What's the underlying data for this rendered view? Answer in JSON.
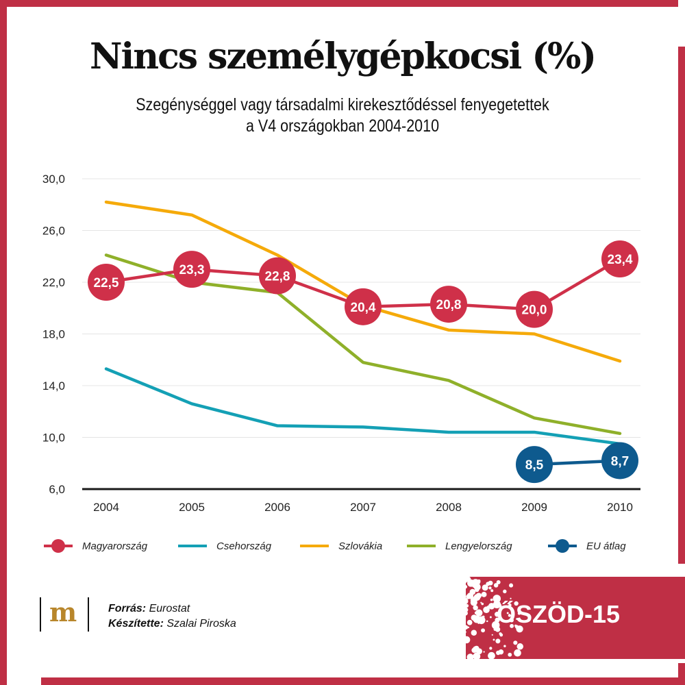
{
  "header": {
    "title": "Nincs személygépkocsi (%)",
    "subtitle_line1": "Szegénységgel vagy társadalmi kirekesztődéssel fenyegetettek",
    "subtitle_line2": "a V4 országokban 2004-2010"
  },
  "chart_data": {
    "type": "line",
    "title": "Nincs személygépkocsi (%)",
    "subtitle": "Szegénységgel vagy társadalmi kirekesztődéssel fenyegetettek a V4 országokban 2004-2010",
    "xlabel": "",
    "ylabel": "",
    "x": [
      "2004",
      "2005",
      "2006",
      "2007",
      "2008",
      "2009",
      "2010"
    ],
    "y_ticks": [
      "30,0",
      "26,0",
      "22,0",
      "18,0",
      "14,0",
      "10,0",
      "6,0"
    ],
    "ylim": [
      6,
      30
    ],
    "grid": true,
    "legend_position": "bottom",
    "series": [
      {
        "name": "Magyarország",
        "color": "#cf3049",
        "marker": "circle-labeled",
        "values": [
          22.5,
          23.3,
          22.8,
          20.4,
          20.8,
          20.0,
          23.4
        ],
        "labels": [
          "22,5",
          "23,3",
          "22,8",
          "20,4",
          "20,8",
          "20,0",
          "23,4"
        ],
        "plotted": [
          22.0,
          23.0,
          22.5,
          20.1,
          20.3,
          19.9,
          23.8
        ]
      },
      {
        "name": "Csehország",
        "color": "#14a0b5",
        "marker": "none",
        "values": [
          15.3,
          12.6,
          10.9,
          10.8,
          10.4,
          10.4,
          9.5
        ]
      },
      {
        "name": "Szlovákia",
        "color": "#f5aa0a",
        "marker": "none",
        "values": [
          28.2,
          27.2,
          24.1,
          20.2,
          18.3,
          18.0,
          15.9
        ]
      },
      {
        "name": "Lengyelország",
        "color": "#8fb02a",
        "marker": "none",
        "values": [
          24.1,
          22.0,
          21.2,
          15.8,
          14.4,
          11.5,
          10.3
        ]
      },
      {
        "name": "EU átlag",
        "color": "#0e5a8e",
        "marker": "circle-labeled",
        "values": [
          null,
          null,
          null,
          null,
          null,
          8.5,
          8.7
        ],
        "labels": [
          null,
          null,
          null,
          null,
          null,
          "8,5",
          "8,7"
        ],
        "plotted": [
          null,
          null,
          null,
          null,
          null,
          7.9,
          8.2
        ]
      }
    ]
  },
  "legend": {
    "items": [
      {
        "label": "Magyarország",
        "color": "#cf3049",
        "marker": true
      },
      {
        "label": "Csehország",
        "color": "#14a0b5",
        "marker": false
      },
      {
        "label": "Szlovákia",
        "color": "#f5aa0a",
        "marker": false
      },
      {
        "label": "Lengyelország",
        "color": "#8fb02a",
        "marker": false
      },
      {
        "label": "EU átlag",
        "color": "#0e5a8e",
        "marker": true
      }
    ]
  },
  "footer": {
    "logo_letter": "m",
    "source_label": "Forrás:",
    "source_value": "Eurostat",
    "author_label": "Készítette:",
    "author_value": "Szalai Piroska",
    "brand": "ŐSZÖD-15"
  },
  "colors": {
    "frame": "#bf2f45",
    "logo_gold": "#b8862b",
    "grid": "#e4e4e4",
    "axis": "#1a1a1a"
  }
}
